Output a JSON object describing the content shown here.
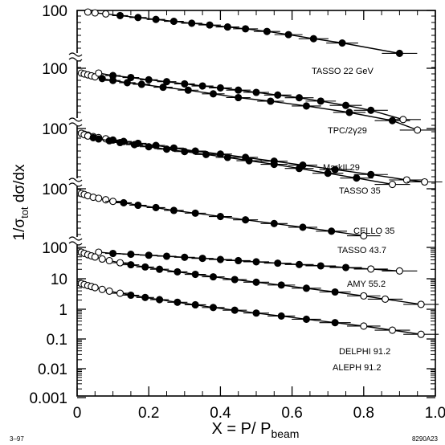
{
  "chart_data": {
    "type": "scatter",
    "title": "",
    "xlabel": {
      "main": "X = P/ P",
      "sub": "beam"
    },
    "ylabel": {
      "pre": "1/σ",
      "sub": "tot",
      "post": " dσ/dx"
    },
    "xlim": [
      0,
      1.0
    ],
    "yscale": "log",
    "x_ticks": [
      "0",
      "0.2",
      "0.4",
      "0.6",
      "0.8",
      "1.0"
    ],
    "y_ticks": [
      "100",
      "100",
      "100",
      "100",
      "100",
      "10",
      "1",
      "0.1",
      "0.01",
      "0.001"
    ],
    "corner_left": "3–97",
    "corner_right": "8290A23",
    "series": [
      {
        "name": "TASSO 22 GeV",
        "x": [
          0.03,
          0.05,
          0.08,
          0.12,
          0.17,
          0.22,
          0.27,
          0.32,
          0.37,
          0.42,
          0.47,
          0.53,
          0.59,
          0.66,
          0.74,
          0.9
        ],
        "y": [
          95,
          90,
          84,
          75,
          66,
          58,
          51,
          45,
          40,
          35,
          31,
          26,
          21,
          16,
          12,
          6
        ]
      },
      {
        "name": "TPC/2γ29",
        "x": [
          0.012,
          0.02,
          0.03,
          0.04,
          0.05,
          0.07,
          0.1,
          0.14,
          0.18,
          0.24,
          0.31,
          0.38,
          0.45,
          0.54,
          0.64,
          0.76,
          0.88,
          0.95
        ],
        "y": [
          36,
          34,
          32,
          30,
          28,
          25,
          22,
          19,
          17,
          14,
          11.5,
          9,
          7,
          5.5,
          4,
          2.6,
          1.5,
          0.8
        ]
      },
      {
        "name": "MarkII 29",
        "x": [
          0.06,
          0.1,
          0.15,
          0.2,
          0.25,
          0.3,
          0.35,
          0.4,
          0.45,
          0.5,
          0.56,
          0.62,
          0.68,
          0.75,
          0.82,
          0.91
        ],
        "y": [
          78,
          66,
          58,
          50,
          44,
          38,
          33,
          29,
          25,
          21.5,
          18,
          15,
          12,
          9,
          6.5,
          3.5
        ]
      },
      {
        "name": "TASSO 35",
        "x": [
          0.012,
          0.02,
          0.03,
          0.045,
          0.06,
          0.08,
          0.1,
          0.13,
          0.17,
          0.22,
          0.27,
          0.33,
          0.4,
          0.47,
          0.55,
          0.63,
          0.72,
          0.82,
          0.92,
          0.97
        ],
        "y": [
          36,
          34,
          32,
          29,
          27,
          25,
          23,
          21,
          18.5,
          16,
          13.5,
          11,
          9,
          7.2,
          5.6,
          4.3,
          3.2,
          2.3,
          1.6,
          1.4
        ]
      },
      {
        "name": "CELLO 35",
        "x": [
          0.012,
          0.02,
          0.03,
          0.045,
          0.06,
          0.09,
          0.12,
          0.16,
          0.2,
          0.25,
          0.3,
          0.36,
          0.42,
          0.48,
          0.55,
          0.62,
          0.7,
          0.78,
          0.88
        ],
        "y": [
          115,
          105,
          96,
          86,
          79,
          70,
          62,
          54,
          47,
          40,
          34,
          28,
          23,
          18.5,
          14.5,
          11,
          8,
          5.8,
          3.8
        ]
      },
      {
        "name": "TASSO 43.7",
        "x": [
          0.012,
          0.02,
          0.03,
          0.045,
          0.06,
          0.08,
          0.1,
          0.13,
          0.17,
          0.22,
          0.27,
          0.33,
          0.4,
          0.47,
          0.55,
          0.63,
          0.71,
          0.8
        ],
        "y": [
          37,
          35,
          32,
          29,
          27,
          24.5,
          22,
          20,
          17,
          14.5,
          12,
          10,
          8,
          6.4,
          5,
          3.9,
          3,
          2.2
        ]
      },
      {
        "name": "AMY 55.2",
        "x": [
          0.06,
          0.1,
          0.15,
          0.2,
          0.25,
          0.3,
          0.35,
          0.4,
          0.45,
          0.5,
          0.56,
          0.62,
          0.68,
          0.75,
          0.82,
          0.9
        ],
        "y": [
          13,
          11,
          9.8,
          8.6,
          7.5,
          6.5,
          5.6,
          4.8,
          4.1,
          3.5,
          2.9,
          2.4,
          2,
          1.6,
          1.3,
          1
        ]
      },
      {
        "name": "DELPHI 91.2",
        "x": [
          0.012,
          0.02,
          0.03,
          0.04,
          0.05,
          0.07,
          0.09,
          0.12,
          0.15,
          0.19,
          0.23,
          0.28,
          0.33,
          0.38,
          0.44,
          0.5,
          0.57,
          0.64,
          0.72,
          0.8,
          0.86,
          0.96
        ],
        "y": [
          28,
          24,
          20,
          17,
          14.5,
          11,
          8.8,
          6.6,
          5,
          3.7,
          2.7,
          1.9,
          1.35,
          0.96,
          0.66,
          0.46,
          0.31,
          0.2,
          0.12,
          0.07,
          0.045,
          0.022
        ]
      },
      {
        "name": "ALEPH 91.2",
        "x": [
          0.012,
          0.02,
          0.03,
          0.04,
          0.05,
          0.07,
          0.09,
          0.12,
          0.15,
          0.19,
          0.23,
          0.28,
          0.33,
          0.38,
          0.44,
          0.5,
          0.57,
          0.64,
          0.72,
          0.8,
          0.88,
          0.96
        ],
        "y": [
          3.2,
          2.8,
          2.4,
          2.1,
          1.8,
          1.4,
          1.1,
          0.82,
          0.62,
          0.45,
          0.33,
          0.23,
          0.16,
          0.11,
          0.075,
          0.05,
          0.033,
          0.021,
          0.013,
          0.008,
          0.0045,
          0.0025
        ]
      }
    ]
  }
}
